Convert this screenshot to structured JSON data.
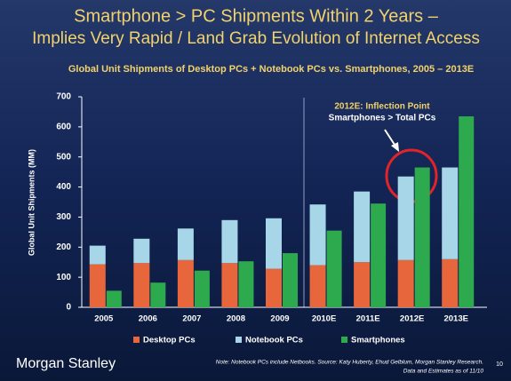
{
  "chart_data": {
    "type": "bar",
    "title": "Smartphone > PC Shipments Within 2 Years –",
    "title_line2": "Implies Very Rapid / Land Grab Evolution of Internet Access",
    "subtitle": "Global Unit Shipments of Desktop PCs + Notebook PCs vs. Smartphones, 2005 – 2013E",
    "y_label": "Global Unit Shipments (MM)",
    "categories": [
      "2005",
      "2006",
      "2007",
      "2008",
      "2009",
      "2010E",
      "2011E",
      "2012E",
      "2013E"
    ],
    "series": [
      {
        "name": "Desktop PCs",
        "color": "#e8663c",
        "stacked": true,
        "values": [
          143,
          147,
          157,
          147,
          128,
          140,
          150,
          157,
          160
        ]
      },
      {
        "name": "Notebook PCs",
        "color": "#a6d6e8",
        "stacked": true,
        "values": [
          62,
          81,
          105,
          143,
          168,
          202,
          235,
          278,
          305
        ]
      },
      {
        "name": "Smartphones",
        "color": "#2eaa4e",
        "stacked": false,
        "values": [
          55,
          82,
          122,
          153,
          180,
          255,
          345,
          465,
          635
        ]
      }
    ],
    "ylim": [
      0,
      700
    ],
    "yticks": [
      0,
      100,
      200,
      300,
      400,
      500,
      600,
      700
    ],
    "annotations": [
      "2012E: Inflection Point",
      "Smartphones > Total PCs"
    ]
  },
  "footer": {
    "brand": "Morgan Stanley",
    "note": "Note: Notebook PCs include Netbooks. Source: Katy Huberty, Ehud Gelblum, Morgan Stanley Research.",
    "note2": "Data and Estimates as of 11/10",
    "page": "10"
  }
}
